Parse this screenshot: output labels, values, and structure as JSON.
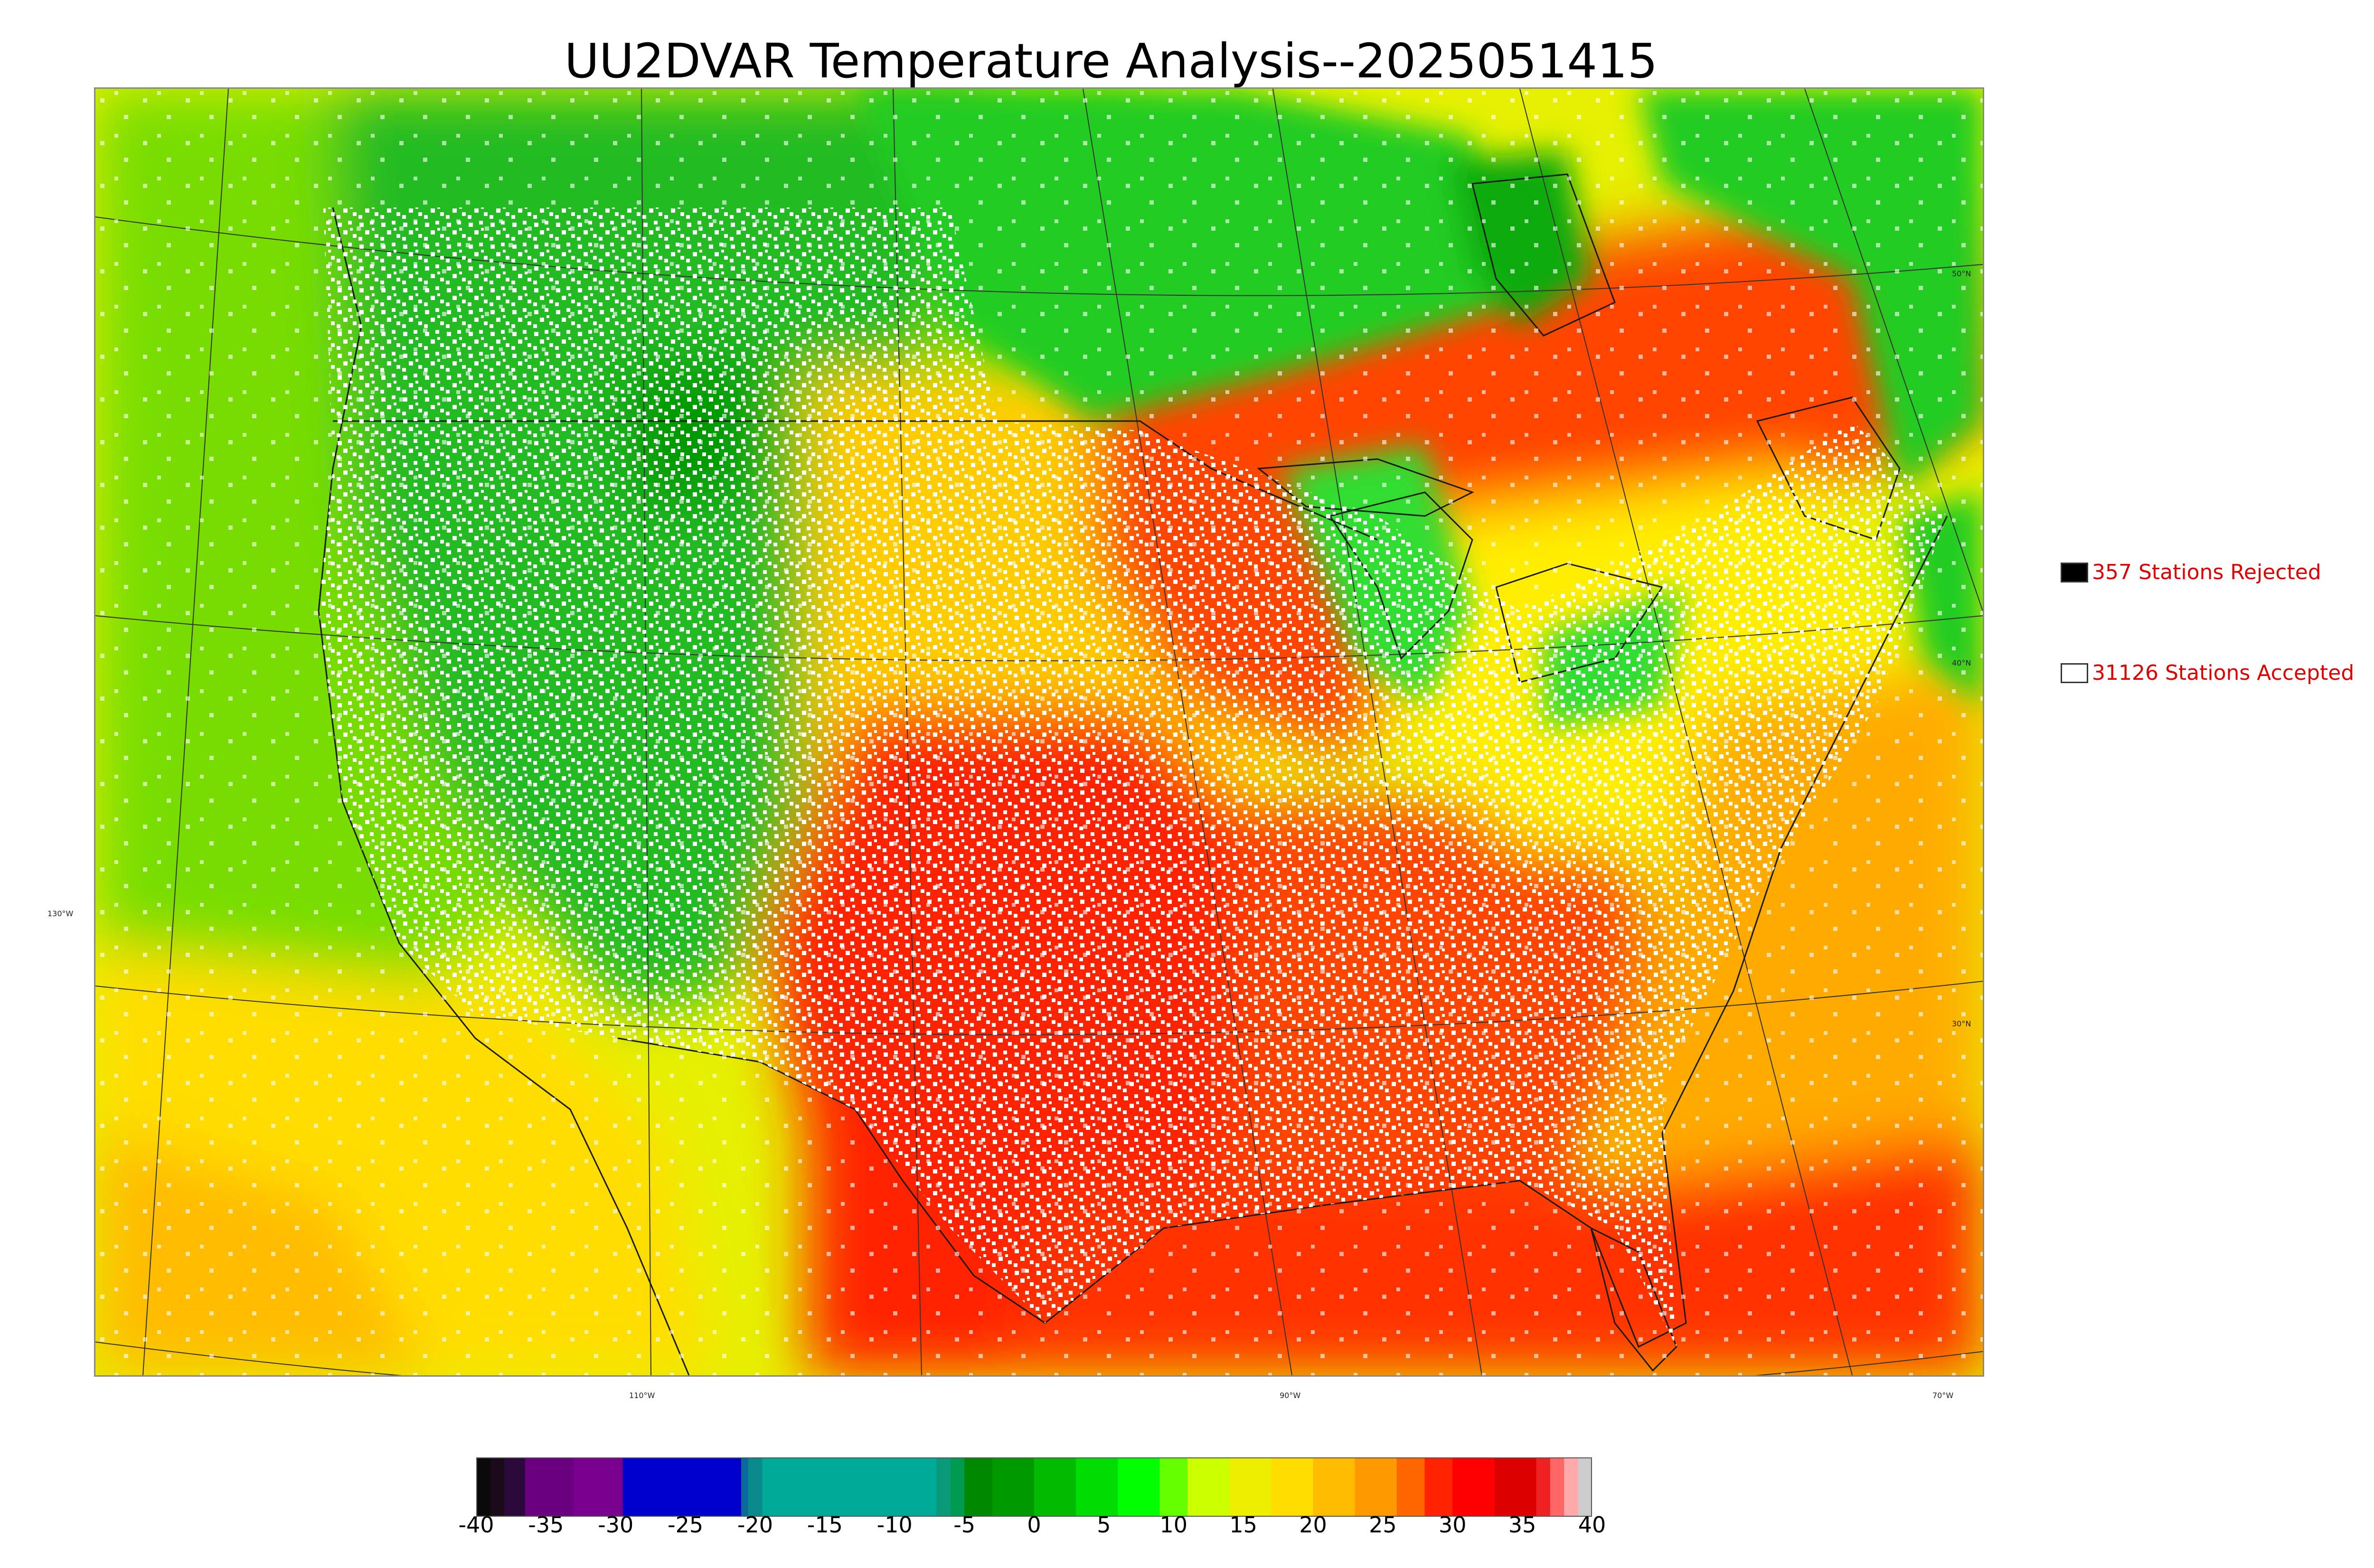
{
  "title": "UU2DVAR Temperature Analysis--2025051415",
  "map": {
    "latitude_labels": [
      "50°N",
      "40°N",
      "30°N"
    ],
    "longitude_labels": [
      "130°W",
      "110°W",
      "90°W",
      "70°W"
    ],
    "field_colors": {
      "pacific": "#e6f000",
      "west_mountains": "#22bb22",
      "plains": "#ffcc00",
      "south_central": "#ff2200",
      "southeast": "#ff4400",
      "northeast": "#ffee00",
      "canada_north": "#22cc22",
      "ontario_band": "#ff4400",
      "atlantic": "#ffaa00",
      "gulf": "#ff3300"
    }
  },
  "legend": {
    "rejected": {
      "count_label": "357 Stations Rejected",
      "swatch_color": "#000000"
    },
    "accepted": {
      "count_label": "31126 Stations Accepted",
      "swatch_color": "#ffffff"
    }
  },
  "colorbar": {
    "ticks": [
      "-40",
      "-35",
      "-30",
      "-25",
      "-20",
      "-15",
      "-10",
      "-5",
      "0",
      "5",
      "10",
      "15",
      "20",
      "25",
      "30",
      "35",
      "40"
    ],
    "range": [
      -40,
      40
    ],
    "stops": [
      {
        "from": -40,
        "to": -39,
        "color": "#0a0a0a"
      },
      {
        "from": -39,
        "to": -38,
        "color": "#1a0a1a"
      },
      {
        "from": -38,
        "to": -36.5,
        "color": "#2a0a3a"
      },
      {
        "from": -36.5,
        "to": -33,
        "color": "#6a0080"
      },
      {
        "from": -33,
        "to": -29.5,
        "color": "#7a0090"
      },
      {
        "from": -29.5,
        "to": -25,
        "color": "#0000cc"
      },
      {
        "from": -25,
        "to": -21,
        "color": "#0000cc"
      },
      {
        "from": -21,
        "to": -20.5,
        "color": "#0a6a9a"
      },
      {
        "from": -20.5,
        "to": -19.5,
        "color": "#0a8a8a"
      },
      {
        "from": -19.5,
        "to": -7,
        "color": "#00aa99"
      },
      {
        "from": -7,
        "to": -6,
        "color": "#0a9a7a"
      },
      {
        "from": -6,
        "to": -5,
        "color": "#009a50"
      },
      {
        "from": -5,
        "to": -3,
        "color": "#008800"
      },
      {
        "from": -3,
        "to": 0,
        "color": "#009900"
      },
      {
        "from": 0,
        "to": 3,
        "color": "#00bb00"
      },
      {
        "from": 3,
        "to": 6,
        "color": "#00dd00"
      },
      {
        "from": 6,
        "to": 9,
        "color": "#00ff00"
      },
      {
        "from": 9,
        "to": 11,
        "color": "#66ff00"
      },
      {
        "from": 11,
        "to": 14,
        "color": "#ccff00"
      },
      {
        "from": 14,
        "to": 17,
        "color": "#eeee00"
      },
      {
        "from": 17,
        "to": 20,
        "color": "#ffdd00"
      },
      {
        "from": 20,
        "to": 23,
        "color": "#ffbb00"
      },
      {
        "from": 23,
        "to": 26,
        "color": "#ff9900"
      },
      {
        "from": 26,
        "to": 28,
        "color": "#ff6600"
      },
      {
        "from": 28,
        "to": 30,
        "color": "#ff2200"
      },
      {
        "from": 30,
        "to": 33,
        "color": "#ff0000"
      },
      {
        "from": 33,
        "to": 36,
        "color": "#dd0000"
      },
      {
        "from": 36,
        "to": 37,
        "color": "#ee2222"
      },
      {
        "from": 37,
        "to": 38,
        "color": "#ff6666"
      },
      {
        "from": 38,
        "to": 39,
        "color": "#ffaaaa"
      },
      {
        "from": 39,
        "to": 40,
        "color": "#cccccc"
      }
    ]
  }
}
